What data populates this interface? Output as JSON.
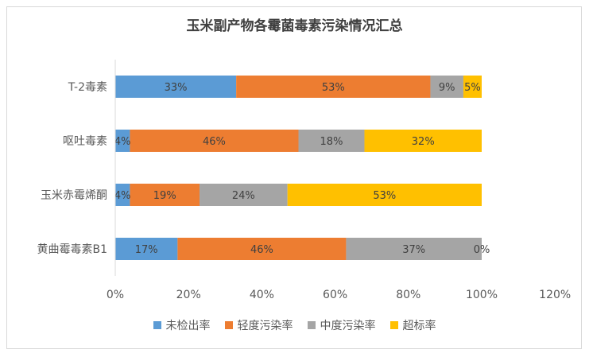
{
  "chart_data": {
    "type": "bar",
    "orientation": "horizontal",
    "stacked": true,
    "title": "玉米副产物各霉菌毒素污染情况汇总",
    "categories": [
      "T-2毒素",
      "呕吐毒素",
      "玉米赤霉烯酮",
      "黄曲霉毒素B1"
    ],
    "series": [
      {
        "name": "未检出率",
        "color": "#5b9bd5",
        "values": [
          33,
          4,
          4,
          17
        ]
      },
      {
        "name": "轻度污染率",
        "color": "#ed7d31",
        "values": [
          53,
          46,
          19,
          46
        ]
      },
      {
        "name": "中度污染率",
        "color": "#a5a5a5",
        "values": [
          9,
          18,
          24,
          37
        ]
      },
      {
        "name": "超标率",
        "color": "#ffc000",
        "values": [
          5,
          32,
          53,
          0
        ]
      }
    ],
    "xlim": [
      0,
      120
    ],
    "xticks": [
      "0%",
      "20%",
      "40%",
      "60%",
      "80%",
      "100%",
      "120%"
    ],
    "grid": false,
    "legend": "bottom"
  }
}
